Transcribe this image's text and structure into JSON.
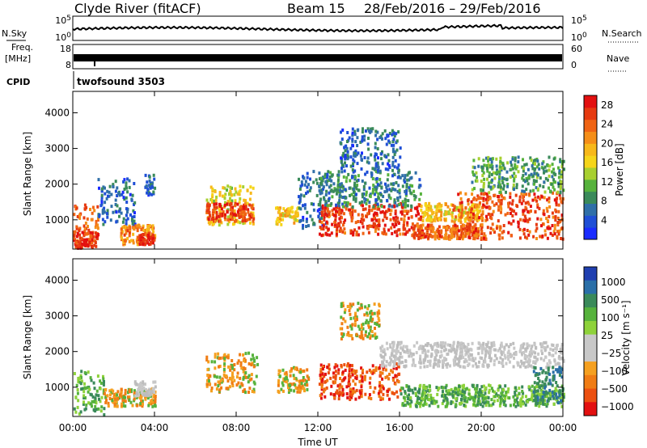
{
  "header": {
    "station": "Clyde River (fitACF)",
    "beam": "Beam 15",
    "date_range": "28/Feb/2016 – 29/Feb/2016"
  },
  "panels": {
    "nsky": {
      "label": "N.Sky",
      "left_ticks": [
        "10^5",
        "10^0"
      ],
      "right_ticks": [
        "10^5",
        "10^0"
      ],
      "right_label": "N.Search"
    },
    "freq": {
      "label_top": "Freq.",
      "label_unit": "[MHz]",
      "left_ticks": [
        "18",
        "8"
      ],
      "right_ticks": [
        "60",
        "0"
      ],
      "right_label": "Nave"
    },
    "cpid": {
      "label": "CPID",
      "value": "twofsound 3503"
    }
  },
  "x_axis": {
    "label": "Time UT",
    "ticks": [
      "00:00",
      "04:00",
      "08:00",
      "12:00",
      "16:00",
      "20:00",
      "00:00"
    ]
  },
  "chart_data": [
    {
      "type": "heatmap",
      "name": "power",
      "ylabel": "Slant Range [km]",
      "yticks": [
        1000,
        2000,
        3000,
        4000
      ],
      "ylim": [
        180,
        4600
      ],
      "xlim_hours": [
        0,
        24
      ],
      "colorbar": {
        "label": "Power [dB]",
        "ticks": [
          "4",
          "8",
          "12",
          "16",
          "20",
          "24",
          "28"
        ],
        "range": [
          0,
          30
        ],
        "colors": [
          "#1a2cff",
          "#1f4fd6",
          "#2f6fa8",
          "#3a8a5a",
          "#56b23c",
          "#a8d030",
          "#f5d51a",
          "#f7b81a",
          "#f58e18",
          "#f06414",
          "#e63a10",
          "#e31010"
        ]
      },
      "regions": [
        {
          "t0": 0.0,
          "t1": 1.2,
          "r0": 250,
          "r1": 1500,
          "level": 24
        },
        {
          "t0": 0.0,
          "t1": 1.2,
          "r0": 250,
          "r1": 700,
          "level": 28
        },
        {
          "t0": 1.2,
          "t1": 3.0,
          "r0": 900,
          "r1": 2200,
          "level": 6
        },
        {
          "t0": 2.3,
          "t1": 4.0,
          "r0": 350,
          "r1": 900,
          "level": 22
        },
        {
          "t0": 3.2,
          "t1": 3.9,
          "r0": 350,
          "r1": 650,
          "level": 29
        },
        {
          "t0": 3.5,
          "t1": 4.0,
          "r0": 1700,
          "r1": 2300,
          "level": 6
        },
        {
          "t0": 6.5,
          "t1": 8.8,
          "r0": 900,
          "r1": 2000,
          "level": 16
        },
        {
          "t0": 6.5,
          "t1": 8.8,
          "r0": 1000,
          "r1": 1500,
          "level": 26
        },
        {
          "t0": 9.9,
          "t1": 11.0,
          "r0": 900,
          "r1": 1400,
          "level": 18
        },
        {
          "t0": 11.0,
          "t1": 12.4,
          "r0": 800,
          "r1": 2400,
          "level": 6
        },
        {
          "t0": 12.0,
          "t1": 17.0,
          "r0": 600,
          "r1": 1500,
          "level": 26
        },
        {
          "t0": 12.0,
          "t1": 17.0,
          "r0": 1400,
          "r1": 2400,
          "level": 8
        },
        {
          "t0": 13.0,
          "t1": 16.0,
          "r0": 2400,
          "r1": 3600,
          "level": 6
        },
        {
          "t0": 16.5,
          "t1": 20.0,
          "r0": 500,
          "r1": 900,
          "level": 24
        },
        {
          "t0": 17.0,
          "t1": 20.0,
          "r0": 1000,
          "r1": 1500,
          "level": 18
        },
        {
          "t0": 18.5,
          "t1": 24.0,
          "r0": 500,
          "r1": 1800,
          "level": 25
        },
        {
          "t0": 19.5,
          "t1": 24.0,
          "r0": 1800,
          "r1": 2800,
          "level": 10
        }
      ]
    },
    {
      "type": "heatmap",
      "name": "velocity",
      "ylabel": "Slant Range [km]",
      "yticks": [
        1000,
        2000,
        3000,
        4000
      ],
      "ylim": [
        180,
        4600
      ],
      "xlim_hours": [
        0,
        24
      ],
      "colorbar": {
        "label": "Velocity [m s⁻¹]",
        "ticks": [
          "1000",
          "500",
          "100",
          "25",
          "−25",
          "−100",
          "−500",
          "−1000"
        ],
        "colors": [
          "#1f3fb0",
          "#2a6fa8",
          "#3a8a5a",
          "#56b23c",
          "#8ed23a",
          "#c8c8c8",
          "#c8c8c8",
          "#f5a020",
          "#f07c14",
          "#ec5010",
          "#e31010"
        ]
      },
      "regions": [
        {
          "t0": 0.0,
          "t1": 1.5,
          "r0": 250,
          "r1": 1500,
          "class": "pos"
        },
        {
          "t0": 1.5,
          "t1": 4.0,
          "r0": 500,
          "r1": 1000,
          "class": "neg"
        },
        {
          "t0": 3.0,
          "t1": 4.0,
          "r0": 800,
          "r1": 1200,
          "class": "zero"
        },
        {
          "t0": 6.5,
          "t1": 9.0,
          "r0": 900,
          "r1": 2000,
          "class": "neg"
        },
        {
          "t0": 10.0,
          "t1": 11.5,
          "r0": 900,
          "r1": 1600,
          "class": "neg"
        },
        {
          "t0": 12.0,
          "t1": 16.0,
          "r0": 700,
          "r1": 1700,
          "class": "strongneg"
        },
        {
          "t0": 13.0,
          "t1": 15.0,
          "r0": 2400,
          "r1": 3400,
          "class": "neg"
        },
        {
          "t0": 15.0,
          "t1": 24.0,
          "r0": 1600,
          "r1": 2300,
          "class": "zero"
        },
        {
          "t0": 16.0,
          "t1": 24.0,
          "r0": 500,
          "r1": 1100,
          "class": "pos"
        },
        {
          "t0": 22.5,
          "t1": 24.0,
          "r0": 600,
          "r1": 1600,
          "class": "strongpos"
        }
      ]
    }
  ]
}
